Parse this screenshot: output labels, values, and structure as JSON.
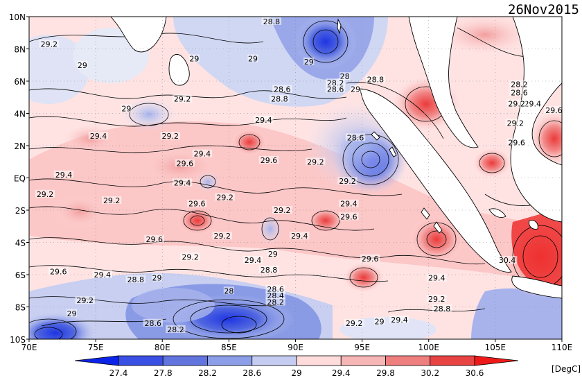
{
  "date_label": "26Nov2015",
  "units_label": "[DegC]",
  "map": {
    "lon_range": [
      70,
      110
    ],
    "lat_range": [
      -10,
      10
    ],
    "lat_ticks": [
      "10N",
      "8N",
      "6N",
      "4N",
      "2N",
      "EQ",
      "2S",
      "4S",
      "6S",
      "8S",
      "10S"
    ],
    "lon_ticks": [
      "70E",
      "75E",
      "80E",
      "85E",
      "90E",
      "95E",
      "100E",
      "105E",
      "110E"
    ],
    "contour_labels": [
      {
        "t": "29.2",
        "lon": 71.5,
        "lat": 8.3
      },
      {
        "t": "29",
        "lon": 74.0,
        "lat": 7.0
      },
      {
        "t": "28.8",
        "lon": 88.2,
        "lat": 9.7
      },
      {
        "t": "29",
        "lon": 82.4,
        "lat": 7.4
      },
      {
        "t": "29",
        "lon": 86.8,
        "lat": 7.4
      },
      {
        "t": "29",
        "lon": 91.0,
        "lat": 7.2
      },
      {
        "t": "28",
        "lon": 93.7,
        "lat": 6.3
      },
      {
        "t": "28.2",
        "lon": 93.0,
        "lat": 5.9
      },
      {
        "t": "28.6",
        "lon": 93.0,
        "lat": 5.5
      },
      {
        "t": "29",
        "lon": 94.5,
        "lat": 5.5
      },
      {
        "t": "28.8",
        "lon": 96.0,
        "lat": 6.1
      },
      {
        "t": "28.6",
        "lon": 89.0,
        "lat": 5.5
      },
      {
        "t": "28.8",
        "lon": 88.8,
        "lat": 4.9
      },
      {
        "t": "29.2",
        "lon": 81.5,
        "lat": 4.9
      },
      {
        "t": "29",
        "lon": 77.3,
        "lat": 4.3
      },
      {
        "t": "29.4",
        "lon": 87.6,
        "lat": 3.6
      },
      {
        "t": "29.4",
        "lon": 75.2,
        "lat": 2.6
      },
      {
        "t": "29.2",
        "lon": 80.6,
        "lat": 2.6
      },
      {
        "t": "28.6",
        "lon": 94.5,
        "lat": 2.5
      },
      {
        "t": "29.4",
        "lon": 83.0,
        "lat": 1.5
      },
      {
        "t": "29.6",
        "lon": 81.7,
        "lat": 0.9
      },
      {
        "t": "29.6",
        "lon": 88.0,
        "lat": 1.1
      },
      {
        "t": "29.2",
        "lon": 91.5,
        "lat": 1.0
      },
      {
        "t": "29.4",
        "lon": 72.6,
        "lat": 0.2
      },
      {
        "t": "29.4",
        "lon": 81.5,
        "lat": -0.3
      },
      {
        "t": "29.2",
        "lon": 93.9,
        "lat": -0.2
      },
      {
        "t": "29.2",
        "lon": 71.2,
        "lat": -1.0
      },
      {
        "t": "29.2",
        "lon": 76.2,
        "lat": -1.4
      },
      {
        "t": "29.2",
        "lon": 84.7,
        "lat": -1.2
      },
      {
        "t": "29.6",
        "lon": 82.6,
        "lat": -1.6
      },
      {
        "t": "29.4",
        "lon": 94.0,
        "lat": -1.6
      },
      {
        "t": "29.2",
        "lon": 89.0,
        "lat": -2.0
      },
      {
        "t": "29.6",
        "lon": 94.0,
        "lat": -2.4
      },
      {
        "t": "29.6",
        "lon": 79.4,
        "lat": -3.8
      },
      {
        "t": "29.2",
        "lon": 84.5,
        "lat": -3.6
      },
      {
        "t": "29.4",
        "lon": 90.3,
        "lat": -3.6
      },
      {
        "t": "29",
        "lon": 88.3,
        "lat": -4.7
      },
      {
        "t": "29.2",
        "lon": 82.1,
        "lat": -4.9
      },
      {
        "t": "29.4",
        "lon": 86.8,
        "lat": -5.1
      },
      {
        "t": "28.8",
        "lon": 88.0,
        "lat": -5.7
      },
      {
        "t": "29.6",
        "lon": 95.6,
        "lat": -5.0
      },
      {
        "t": "30.4",
        "lon": 105.9,
        "lat": -5.1
      },
      {
        "t": "29.6",
        "lon": 72.2,
        "lat": -5.8
      },
      {
        "t": "29.4",
        "lon": 75.5,
        "lat": -6.0
      },
      {
        "t": "28.8",
        "lon": 78.0,
        "lat": -6.3
      },
      {
        "t": "29",
        "lon": 79.6,
        "lat": -6.2
      },
      {
        "t": "29.4",
        "lon": 100.6,
        "lat": -6.2
      },
      {
        "t": "28",
        "lon": 85.0,
        "lat": -7.0
      },
      {
        "t": "28.6",
        "lon": 88.5,
        "lat": -6.9
      },
      {
        "t": "28.4",
        "lon": 88.5,
        "lat": -7.3
      },
      {
        "t": "28.2",
        "lon": 88.5,
        "lat": -7.7
      },
      {
        "t": "29.2",
        "lon": 74.2,
        "lat": -7.6
      },
      {
        "t": "29.2",
        "lon": 100.6,
        "lat": -7.5
      },
      {
        "t": "28.8",
        "lon": 101.0,
        "lat": -8.1
      },
      {
        "t": "29",
        "lon": 73.2,
        "lat": -8.4
      },
      {
        "t": "28.6",
        "lon": 79.3,
        "lat": -9.0
      },
      {
        "t": "28.2",
        "lon": 81.0,
        "lat": -9.4
      },
      {
        "t": "29.2",
        "lon": 94.4,
        "lat": -9.0
      },
      {
        "t": "29",
        "lon": 96.3,
        "lat": -8.9
      },
      {
        "t": "29.4",
        "lon": 97.8,
        "lat": -8.8
      },
      {
        "t": "29.2",
        "lon": 106.5,
        "lat": 3.4
      },
      {
        "t": "28.2",
        "lon": 106.8,
        "lat": 5.8
      },
      {
        "t": "28.6",
        "lon": 106.8,
        "lat": 5.3
      },
      {
        "t": "29.4",
        "lon": 107.8,
        "lat": 4.6
      },
      {
        "t": "29.2",
        "lon": 106.6,
        "lat": 4.6
      },
      {
        "t": "29.6",
        "lon": 109.4,
        "lat": 4.2
      },
      {
        "t": "29.6",
        "lon": 106.6,
        "lat": 2.2
      }
    ]
  },
  "colorbar": {
    "labels": [
      "27.4",
      "27.8",
      "28.2",
      "28.6",
      "29",
      "29.4",
      "29.8",
      "30.2",
      "30.6"
    ],
    "colors": [
      "#0b24e8",
      "#3a4fe3",
      "#6275df",
      "#8c9ee8",
      "#c4cdf1",
      "#ffdcdc",
      "#f7b6b6",
      "#ef7f7f",
      "#e84444",
      "#ee1a1a"
    ]
  }
}
